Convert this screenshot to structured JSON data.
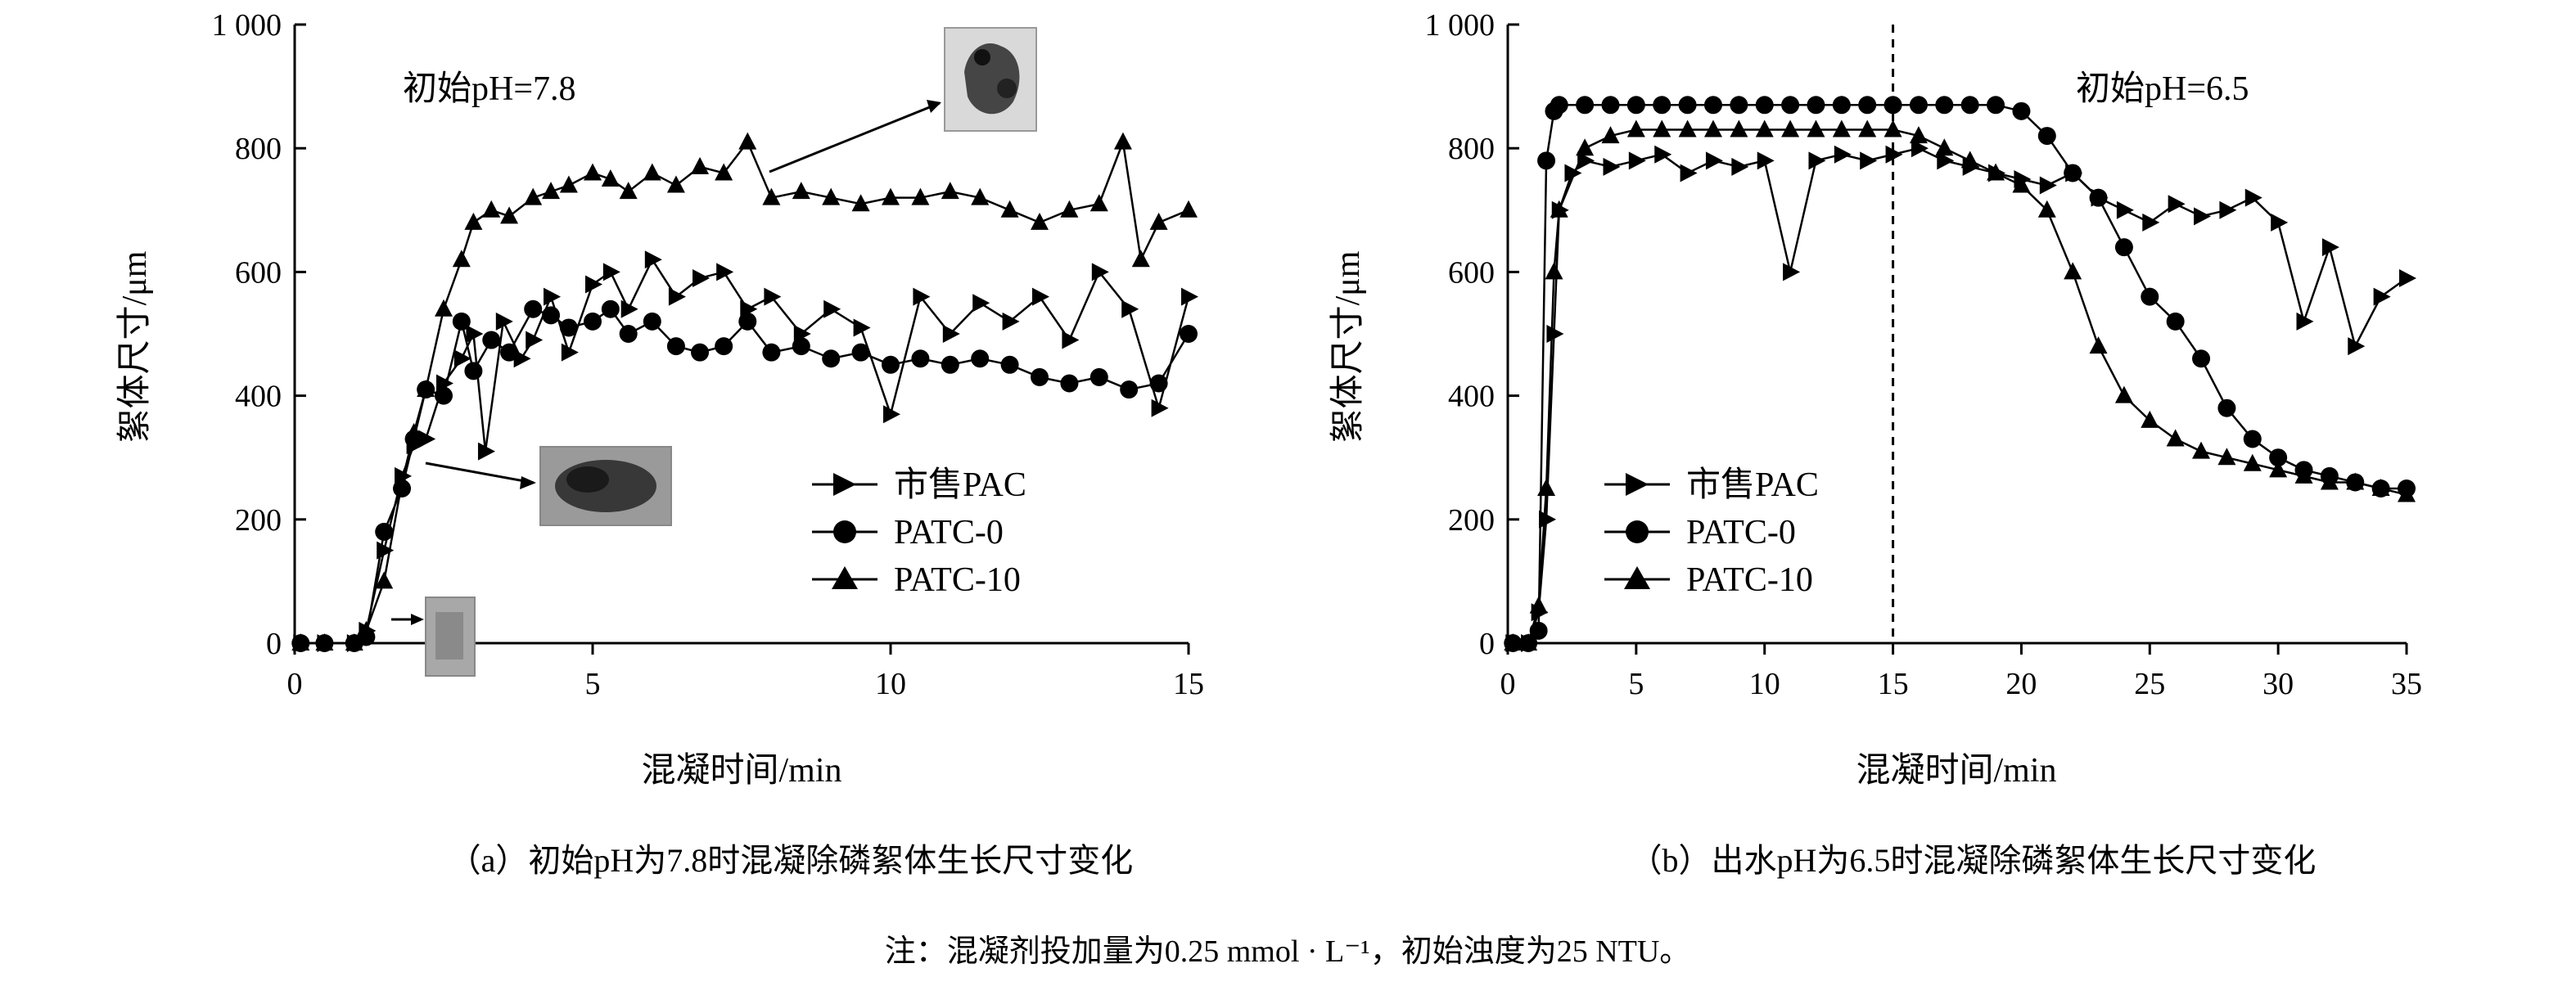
{
  "chart_data": [
    {
      "id": "a",
      "type": "line",
      "annotation": "初始pH=7.8",
      "xlabel": "混凝时间/min",
      "ylabel": "絮体尺寸/μm",
      "xlim": [
        0,
        15
      ],
      "ylim": [
        0,
        1000
      ],
      "x_ticks": [
        {
          "value": 0,
          "label": "0"
        },
        {
          "value": 5,
          "label": "5"
        },
        {
          "value": 10,
          "label": "10"
        },
        {
          "value": 15,
          "label": "15"
        }
      ],
      "y_ticks": [
        {
          "value": 0,
          "label": "0"
        },
        {
          "value": 200,
          "label": "200"
        },
        {
          "value": 400,
          "label": "400"
        },
        {
          "value": 600,
          "label": "600"
        },
        {
          "value": 800,
          "label": "800"
        },
        {
          "value": 1000,
          "label": "1 000"
        }
      ],
      "caption": "（a）初始pH为7.8时混凝除磷絮体生长尺寸变化",
      "legend_position": "center-right",
      "series": [
        {
          "name": "市售PAC",
          "marker": "triangle-right",
          "x": [
            0.1,
            0.5,
            1.0,
            1.2,
            1.5,
            1.8,
            2.0,
            2.2,
            2.5,
            2.8,
            3.0,
            3.2,
            3.5,
            3.8,
            4.0,
            4.3,
            4.6,
            5.0,
            5.3,
            5.6,
            6.0,
            6.4,
            6.8,
            7.2,
            7.6,
            8.0,
            8.5,
            9.0,
            9.5,
            10.0,
            10.5,
            11.0,
            11.5,
            12.0,
            12.5,
            13.0,
            13.5,
            14.0,
            14.5,
            15.0
          ],
          "y": [
            0,
            0,
            0,
            20,
            150,
            270,
            320,
            330,
            420,
            460,
            500,
            310,
            520,
            460,
            490,
            560,
            470,
            580,
            600,
            540,
            620,
            560,
            590,
            600,
            540,
            560,
            500,
            540,
            510,
            370,
            560,
            500,
            550,
            520,
            560,
            490,
            600,
            540,
            380,
            560
          ]
        },
        {
          "name": "PATC-0",
          "marker": "circle",
          "x": [
            0.1,
            0.5,
            1.0,
            1.2,
            1.5,
            1.8,
            2.0,
            2.2,
            2.5,
            2.8,
            3.0,
            3.3,
            3.6,
            4.0,
            4.3,
            4.6,
            5.0,
            5.3,
            5.6,
            6.0,
            6.4,
            6.8,
            7.2,
            7.6,
            8.0,
            8.5,
            9.0,
            9.5,
            10.0,
            10.5,
            11.0,
            11.5,
            12.0,
            12.5,
            13.0,
            13.5,
            14.0,
            14.5,
            15.0
          ],
          "y": [
            0,
            0,
            0,
            10,
            180,
            250,
            330,
            410,
            400,
            520,
            440,
            490,
            470,
            540,
            530,
            510,
            520,
            540,
            500,
            520,
            480,
            470,
            480,
            520,
            470,
            480,
            460,
            470,
            450,
            460,
            450,
            460,
            450,
            430,
            420,
            430,
            410,
            420,
            500
          ]
        },
        {
          "name": "PATC-10",
          "marker": "triangle-up",
          "x": [
            0.1,
            0.5,
            1.0,
            1.2,
            1.5,
            1.8,
            2.0,
            2.2,
            2.5,
            2.8,
            3.0,
            3.3,
            3.6,
            4.0,
            4.3,
            4.6,
            5.0,
            5.3,
            5.6,
            6.0,
            6.4,
            6.8,
            7.2,
            7.6,
            8.0,
            8.5,
            9.0,
            9.5,
            10.0,
            10.5,
            11.0,
            11.5,
            12.0,
            12.5,
            13.0,
            13.5,
            13.9,
            14.2,
            14.5,
            15.0
          ],
          "y": [
            0,
            0,
            0,
            20,
            100,
            260,
            340,
            410,
            540,
            620,
            680,
            700,
            690,
            720,
            730,
            740,
            760,
            750,
            730,
            760,
            740,
            770,
            760,
            810,
            720,
            730,
            720,
            710,
            720,
            720,
            730,
            720,
            700,
            680,
            700,
            710,
            810,
            620,
            680,
            700
          ]
        }
      ]
    },
    {
      "id": "b",
      "type": "line",
      "annotation": "初始pH=6.5",
      "xlabel": "混凝时间/min",
      "ylabel": "絮体尺寸/μm",
      "xlim": [
        0,
        35
      ],
      "ylim": [
        0,
        1000
      ],
      "vline_x": 15,
      "x_ticks": [
        {
          "value": 0,
          "label": "0"
        },
        {
          "value": 5,
          "label": "5"
        },
        {
          "value": 10,
          "label": "10"
        },
        {
          "value": 15,
          "label": "15"
        },
        {
          "value": 20,
          "label": "20"
        },
        {
          "value": 25,
          "label": "25"
        },
        {
          "value": 30,
          "label": "30"
        },
        {
          "value": 35,
          "label": "35"
        }
      ],
      "y_ticks": [
        {
          "value": 0,
          "label": "0"
        },
        {
          "value": 200,
          "label": "200"
        },
        {
          "value": 400,
          "label": "400"
        },
        {
          "value": 600,
          "label": "600"
        },
        {
          "value": 800,
          "label": "800"
        },
        {
          "value": 1000,
          "label": "1 000"
        }
      ],
      "caption": "（b）出水pH为6.5时混凝除磷絮体生长尺寸变化",
      "legend_position": "center-left",
      "series": [
        {
          "name": "市售PAC",
          "marker": "triangle-right",
          "x": [
            0.2,
            0.8,
            1.2,
            1.5,
            1.8,
            2.0,
            2.5,
            3.0,
            4.0,
            5.0,
            6.0,
            7.0,
            8.0,
            9.0,
            10.0,
            11.0,
            12.0,
            13.0,
            14.0,
            15.0,
            16.0,
            17.0,
            18.0,
            19.0,
            20.0,
            21.0,
            22.0,
            23.0,
            24.0,
            25.0,
            26.0,
            27.0,
            28.0,
            29.0,
            30.0,
            31.0,
            32.0,
            33.0,
            34.0,
            35.0
          ],
          "y": [
            0,
            0,
            50,
            200,
            500,
            700,
            760,
            780,
            770,
            780,
            790,
            760,
            780,
            770,
            780,
            600,
            780,
            790,
            780,
            790,
            800,
            780,
            770,
            760,
            750,
            740,
            760,
            720,
            700,
            680,
            710,
            690,
            700,
            720,
            680,
            520,
            640,
            480,
            560,
            590
          ]
        },
        {
          "name": "PATC-0",
          "marker": "circle",
          "x": [
            0.2,
            0.8,
            1.2,
            1.5,
            1.8,
            2.0,
            3.0,
            4.0,
            5.0,
            6.0,
            7.0,
            8.0,
            9.0,
            10.0,
            11.0,
            12.0,
            13.0,
            14.0,
            15.0,
            16.0,
            17.0,
            18.0,
            19.0,
            20.0,
            21.0,
            22.0,
            23.0,
            24.0,
            25.0,
            26.0,
            27.0,
            28.0,
            29.0,
            30.0,
            31.0,
            32.0,
            33.0,
            34.0,
            35.0
          ],
          "y": [
            0,
            0,
            20,
            780,
            860,
            870,
            870,
            870,
            870,
            870,
            870,
            870,
            870,
            870,
            870,
            870,
            870,
            870,
            870,
            870,
            870,
            870,
            870,
            860,
            820,
            760,
            720,
            640,
            560,
            520,
            460,
            380,
            330,
            300,
            280,
            270,
            260,
            250,
            250
          ]
        },
        {
          "name": "PATC-10",
          "marker": "triangle-up",
          "x": [
            0.2,
            0.8,
            1.2,
            1.5,
            1.8,
            2.0,
            3.0,
            4.0,
            5.0,
            6.0,
            7.0,
            8.0,
            9.0,
            10.0,
            11.0,
            12.0,
            13.0,
            14.0,
            15.0,
            16.0,
            17.0,
            18.0,
            19.0,
            20.0,
            21.0,
            22.0,
            23.0,
            24.0,
            25.0,
            26.0,
            27.0,
            28.0,
            29.0,
            30.0,
            31.0,
            32.0,
            33.0,
            34.0,
            35.0
          ],
          "y": [
            0,
            0,
            60,
            250,
            600,
            700,
            800,
            820,
            830,
            830,
            830,
            830,
            830,
            830,
            830,
            830,
            830,
            830,
            830,
            820,
            800,
            780,
            760,
            740,
            700,
            600,
            480,
            400,
            360,
            330,
            310,
            300,
            290,
            280,
            270,
            260,
            260,
            250,
            240
          ]
        }
      ]
    }
  ],
  "note": "注：混凝剂投加量为0.25 mmol · L⁻¹，初始浊度为25 NTU。"
}
